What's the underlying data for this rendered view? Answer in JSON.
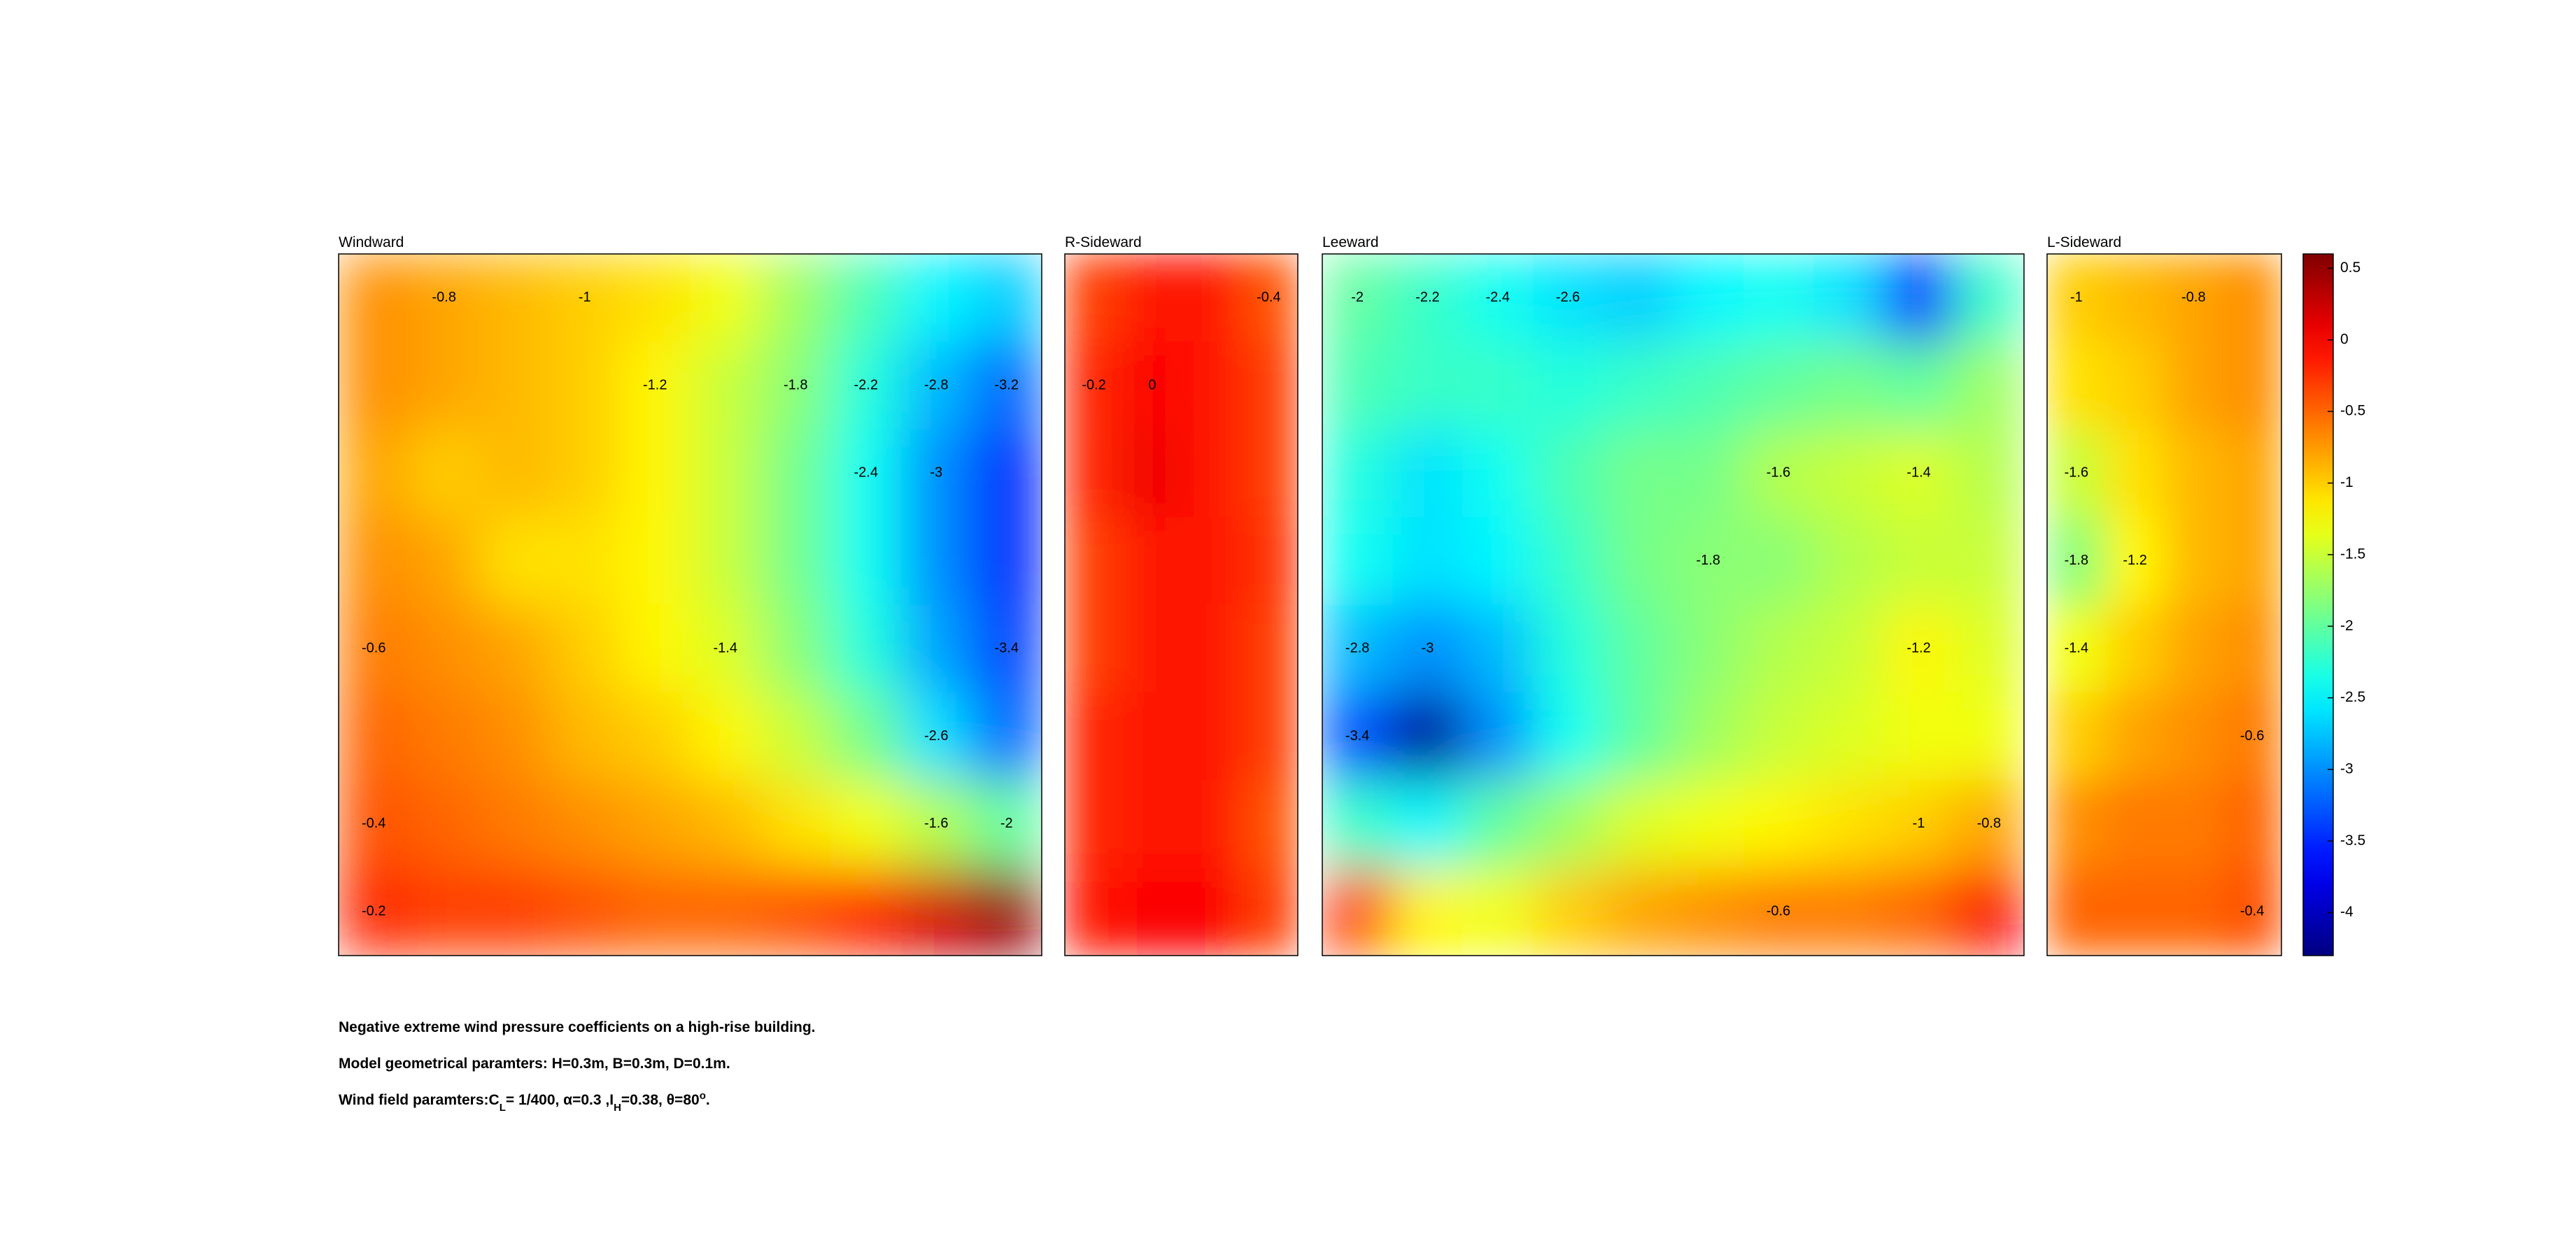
{
  "chart_data": {
    "type": "contour",
    "colormap": "jet",
    "clim": [
      -4.3,
      0.6
    ],
    "cticks": [
      0.5,
      0,
      -0.5,
      -1,
      -1.5,
      -2,
      -2.5,
      -3,
      -3.5,
      -4
    ],
    "panels": [
      {
        "title": "Windward",
        "z": [
          [
            -0.7,
            -0.8,
            -0.9,
            -1,
            -1.1,
            -1.3,
            -1.7,
            -2.1,
            -2.5,
            -2.7
          ],
          [
            -0.7,
            -0.8,
            -0.9,
            -1,
            -1.2,
            -1.5,
            -1.8,
            -2.3,
            -2.8,
            -3.2
          ],
          [
            -0.8,
            -1,
            -0.9,
            -1,
            -1.2,
            -1.5,
            -1.9,
            -2.4,
            -3.0,
            -3.5
          ],
          [
            -0.7,
            -0.8,
            -1.1,
            -1.1,
            -1.2,
            -1.5,
            -1.9,
            -2.4,
            -3.0,
            -3.5
          ],
          [
            -0.6,
            -0.7,
            -0.8,
            -1,
            -1.2,
            -1.4,
            -1.8,
            -2.3,
            -2.9,
            -3.4
          ],
          [
            -0.5,
            -0.6,
            -0.7,
            -0.9,
            -1.0,
            -1.2,
            -1.5,
            -1.9,
            -2.6,
            -3.2
          ],
          [
            -0.4,
            -0.5,
            -0.6,
            -0.7,
            -0.8,
            -0.9,
            -1.1,
            -1.3,
            -1.6,
            -2
          ],
          [
            -0.2,
            -0.3,
            -0.3,
            -0.4,
            -0.5,
            -0.5,
            -0.4,
            -0.2,
            0.2,
            0.5
          ]
        ],
        "contour_labels": [
          -1,
          -0.6,
          -0.8,
          -1.2,
          -1.4,
          -1.6,
          -1.8,
          -2,
          -2.2,
          -2.4,
          -2.6,
          -2.8,
          -3,
          -3.2,
          -3.4,
          -0.4,
          -0.2
        ]
      },
      {
        "title": "R-Sideward",
        "z": [
          [
            -0.3,
            -0.1,
            -0.1,
            -0.4
          ],
          [
            -0.2,
            0,
            -0.1,
            -0.3
          ],
          [
            -0.2,
            0.05,
            -0.1,
            -0.3
          ],
          [
            -0.3,
            -0.1,
            -0.1,
            -0.25
          ],
          [
            -0.3,
            -0.1,
            -0.1,
            -0.3
          ],
          [
            -0.2,
            -0.1,
            -0.1,
            -0.3
          ],
          [
            -0.2,
            -0.1,
            -0.1,
            -0.4
          ],
          [
            -0.1,
            0,
            0,
            -0.3
          ]
        ],
        "contour_labels": [
          -0.2,
          -0.4,
          0
        ]
      },
      {
        "title": "Leeward",
        "z": [
          [
            -2,
            -2.2,
            -2.4,
            -2.6,
            -2.7,
            -2.5,
            -2.4,
            -2.6,
            -3.6,
            -2.2
          ],
          [
            -2.1,
            -2.2,
            -2.2,
            -2.3,
            -2.2,
            -2.1,
            -2.0,
            -1.9,
            -2.0,
            -1.7
          ],
          [
            -2.3,
            -2.6,
            -2.4,
            -2.1,
            -1.9,
            -1.9,
            -1.6,
            -1.5,
            -1.4,
            -1.6
          ],
          [
            -2.4,
            -2.6,
            -2.5,
            -2.2,
            -1.9,
            -1.8,
            -1.8,
            -1.6,
            -1.5,
            -1.5
          ],
          [
            -2.8,
            -3.0,
            -2.8,
            -2.3,
            -2.0,
            -1.8,
            -1.6,
            -1.5,
            -1.2,
            -1.4
          ],
          [
            -3.3,
            -4.2,
            -3.0,
            -2.4,
            -2.0,
            -1.7,
            -1.5,
            -1.4,
            -1.3,
            -1.3
          ],
          [
            -2.2,
            -2.5,
            -2.0,
            -1.7,
            -1.4,
            -1.3,
            -1.2,
            -1.1,
            -1.0,
            -0.8
          ],
          [
            -0.3,
            -1.2,
            -1.3,
            -1.0,
            -0.8,
            -0.7,
            -0.6,
            -0.6,
            -0.5,
            0
          ]
        ],
        "contour_labels": [
          -2,
          -2.2,
          -2.4,
          -2.6,
          -2.8,
          -3,
          -3.4,
          -1.8,
          -1.6,
          -1.4,
          -1.2,
          -1,
          -0.8,
          -0.6
        ]
      },
      {
        "title": "L-Sideward",
        "z": [
          [
            -1.0,
            -0.9,
            -0.8,
            -0.7
          ],
          [
            -1.1,
            -1.0,
            -0.8,
            -0.7
          ],
          [
            -1.5,
            -1.1,
            -0.9,
            -0.8
          ],
          [
            -1.8,
            -1.2,
            -0.9,
            -0.8
          ],
          [
            -1.3,
            -1.0,
            -0.8,
            -0.7
          ],
          [
            -1.0,
            -0.8,
            -0.7,
            -0.6
          ],
          [
            -0.7,
            -0.6,
            -0.6,
            -0.5
          ],
          [
            -0.5,
            -0.5,
            -0.5,
            -0.4
          ]
        ],
        "contour_labels": [
          -0.8,
          -1,
          -1.2,
          -1.4,
          -1.6,
          -1.8,
          -0.6,
          -0.4
        ]
      }
    ]
  },
  "captions": [
    [
      "Negative extreme wind pressure coefficients on a high-rise building."
    ],
    [
      "Model geometrical paramters: H=0.3m, B=0.3m, D=0.1m."
    ],
    [
      "Wind field paramters:C",
      "L",
      "= 1/400, α=0.3 ,I",
      "H",
      "=0.38, θ=80",
      "o",
      "."
    ]
  ]
}
